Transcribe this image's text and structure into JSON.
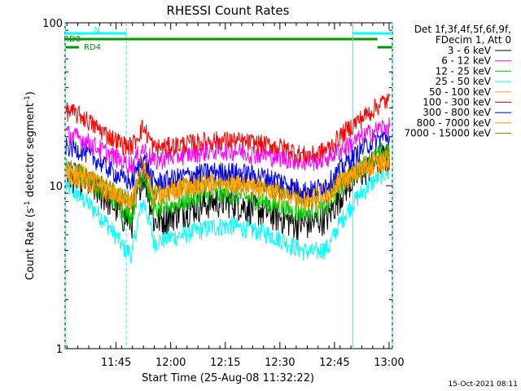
{
  "chart_data": {
    "type": "line",
    "title": "RHESSI Count Rates",
    "xlabel": "Start Time (25-Aug-08 11:32:22)",
    "ylabel_main": "Count Rate (s",
    "ylabel_sup": "-1",
    "ylabel_mid": " detector segment",
    "ylabel_sup2": "-1",
    "ylabel_end": ")",
    "y_scale": "log",
    "ylim": [
      1,
      100
    ],
    "y_ticks": [
      {
        "v": 1,
        "label": "1"
      },
      {
        "v": 10,
        "label": "10"
      },
      {
        "v": 100,
        "label": "100"
      }
    ],
    "xlim_min": [
      -1.4,
      88.5
    ],
    "x_ticks": [
      {
        "t": 12.6,
        "label": "11:45"
      },
      {
        "t": 27.6,
        "label": "12:00"
      },
      {
        "t": 42.6,
        "label": "12:15"
      },
      {
        "t": 57.6,
        "label": "12:30"
      },
      {
        "t": 72.6,
        "label": "12:45"
      },
      {
        "t": 87.6,
        "label": "13:00"
      }
    ],
    "legend_header": [
      "Det 1f,3f,4f,5f,6f,9f,",
      "FDecim 1, Att 0"
    ],
    "series": [
      {
        "name": "3 - 6 keV",
        "color": "#000000",
        "values": [
          12,
          11,
          9.5,
          8,
          6.5,
          6,
          12,
          6,
          6.5,
          7,
          7.5,
          8,
          8,
          7.5,
          7,
          6.5,
          6,
          5.8,
          6,
          6.5,
          10,
          13,
          15
        ]
      },
      {
        "name": "6 - 12 keV",
        "color": "#ff00ff",
        "values": [
          21,
          19.5,
          17.5,
          15.5,
          14,
          13.5,
          17,
          14,
          15,
          15.5,
          16,
          16.5,
          16.5,
          16,
          15.5,
          15,
          14.5,
          14,
          14.2,
          15,
          17.5,
          21,
          23
        ]
      },
      {
        "name": "12 - 25 keV",
        "color": "#00cc00",
        "values": [
          12.5,
          11.5,
          10,
          8.5,
          7,
          6.5,
          12,
          7,
          7.5,
          8,
          8.5,
          8.8,
          8.8,
          8.5,
          8,
          7.5,
          7,
          6.8,
          7,
          7.5,
          11,
          14,
          16.5
        ]
      },
      {
        "name": "25 - 50 keV",
        "color": "#00ffff",
        "values": [
          10,
          8.5,
          7,
          5.5,
          4.2,
          3.8,
          8,
          4.5,
          4.8,
          5,
          5.3,
          5.6,
          5.7,
          5.5,
          5.2,
          4.8,
          4.3,
          4,
          3.9,
          4.2,
          7,
          10,
          12
        ]
      },
      {
        "name": "50 - 100 keV",
        "color": "#ffa500",
        "values": [
          13,
          12,
          10.5,
          9.5,
          8.5,
          8,
          13.5,
          9,
          9.5,
          10,
          10.5,
          10.8,
          10.8,
          10.5,
          10,
          9.5,
          9,
          8.5,
          8.7,
          9.2,
          11.5,
          13.5,
          14.5
        ]
      },
      {
        "name": "100 - 300 keV",
        "color": "#ff0000",
        "values": [
          29,
          27,
          23,
          20,
          18,
          17.5,
          23,
          17,
          17.5,
          18,
          18.5,
          19,
          19,
          18.5,
          18,
          17.5,
          16.5,
          15.5,
          15.5,
          17,
          22,
          28,
          33
        ]
      },
      {
        "name": "300 - 800 keV",
        "color": "#0000ff",
        "values": [
          17.5,
          16.5,
          14.5,
          12.5,
          11,
          10.5,
          15,
          10.5,
          11,
          11.5,
          12,
          12.3,
          12.3,
          12,
          11.5,
          11,
          10,
          9.5,
          9.5,
          10.5,
          14,
          18,
          20
        ]
      },
      {
        "name": "800 - 7000 keV",
        "color": "#ff8c00",
        "values": [
          12,
          11,
          10,
          9,
          8,
          7.5,
          12.5,
          8.5,
          9,
          9.5,
          10,
          10.2,
          10.2,
          10,
          9.5,
          9,
          8.5,
          8,
          8.2,
          8.8,
          11,
          13,
          14
        ]
      },
      {
        "name": "7000 - 15000 keV",
        "color": "#808000",
        "values": [
          13,
          12,
          10.5,
          9.5,
          8.5,
          8,
          13,
          9,
          9.5,
          10,
          10.5,
          10.8,
          10.8,
          10.5,
          10,
          9.5,
          9,
          8.5,
          8.7,
          9.3,
          12,
          14,
          15
        ]
      }
    ],
    "series_t_min": [
      -1.4,
      3,
      7,
      11,
      14.5,
      17,
      20,
      23,
      27,
      31,
      35,
      39,
      44,
      48,
      53,
      57,
      61,
      64,
      67,
      71,
      76,
      82,
      86
    ],
    "attenuator_bars": [
      {
        "label": "RD0",
        "color": "#009900",
        "t0": -1.4,
        "t1": 84.4,
        "row": 1
      },
      {
        "label": "RD4",
        "color": "#009900",
        "t0": -1.4,
        "t1": 2.4,
        "row": 2
      },
      {
        "label": "",
        "color": "#009900",
        "t0": 84.4,
        "t1": 88.5,
        "row": 2
      },
      {
        "label": "N",
        "color": "#00ffff",
        "t0": -1.4,
        "t1": 15.4,
        "row": 0
      },
      {
        "label": "",
        "color": "#00ffff",
        "t0": 77.6,
        "t1": 88.5,
        "row": 0
      }
    ],
    "night_lines": [
      {
        "t": -1.4,
        "style": "dashed"
      },
      {
        "t": 15.4,
        "style": "dashed"
      },
      {
        "t": 77.6,
        "style": "solid"
      },
      {
        "t": 88.5,
        "style": "dashed"
      }
    ],
    "timestamp": "15-Oct-2021 08:11"
  }
}
